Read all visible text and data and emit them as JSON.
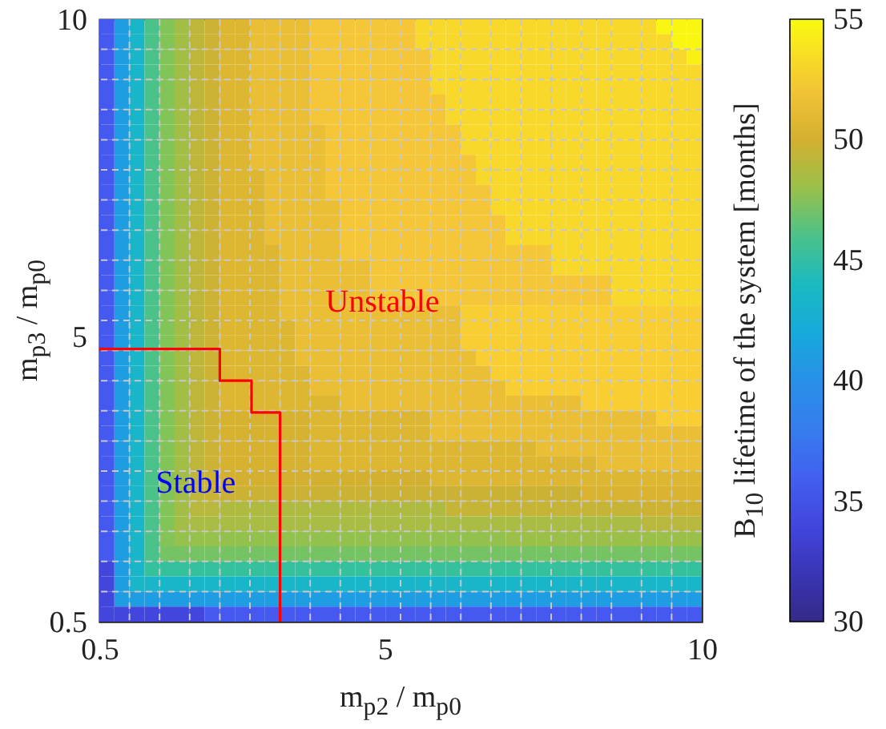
{
  "chart_data": {
    "type": "heatmap",
    "xlabel": "m$_{p2}$ / m$_{p0}$",
    "ylabel": "m$_{p3}$ / m$_{p0}$",
    "clabel": "B$_{10}$ lifetime of the system [months]",
    "xlim": [
      0.5,
      10
    ],
    "ylim": [
      0.5,
      10
    ],
    "xticks": [
      0.5,
      {
        "value": 0.975,
        "label": null
      },
      {
        "value": 1.45,
        "label": null
      },
      {
        "value": 1.925,
        "label": null
      },
      {
        "value": 2.4,
        "label": null
      },
      {
        "value": 2.875,
        "label": null
      },
      {
        "value": 3.35,
        "label": null
      },
      {
        "value": 3.825,
        "label": null
      },
      {
        "value": 4.3,
        "label": null
      },
      {
        "value": 4.775,
        "label": null
      },
      5,
      {
        "value": 5.25,
        "label": null
      },
      {
        "value": 5.725,
        "label": null
      },
      {
        "value": 6.2,
        "label": null
      },
      {
        "value": 6.675,
        "label": null
      },
      {
        "value": 7.15,
        "label": null
      },
      {
        "value": 7.625,
        "label": null
      },
      {
        "value": 8.1,
        "label": null
      },
      {
        "value": 8.575,
        "label": null
      },
      {
        "value": 9.05,
        "label": null
      },
      {
        "value": 9.525,
        "label": null
      },
      10
    ],
    "yticks": [
      0.5,
      {
        "value": 0.975,
        "label": null
      },
      {
        "value": 1.45,
        "label": null
      },
      {
        "value": 1.925,
        "label": null
      },
      {
        "value": 2.4,
        "label": null
      },
      {
        "value": 2.875,
        "label": null
      },
      {
        "value": 3.35,
        "label": null
      },
      {
        "value": 3.825,
        "label": null
      },
      {
        "value": 4.3,
        "label": null
      },
      {
        "value": 4.775,
        "label": null
      },
      5,
      {
        "value": 5.25,
        "label": null
      },
      {
        "value": 5.725,
        "label": null
      },
      {
        "value": 6.2,
        "label": null
      },
      {
        "value": 6.675,
        "label": null
      },
      {
        "value": 7.15,
        "label": null
      },
      {
        "value": 7.625,
        "label": null
      },
      {
        "value": 8.1,
        "label": null
      },
      {
        "value": 8.575,
        "label": null
      },
      {
        "value": 9.05,
        "label": null
      },
      {
        "value": 9.525,
        "label": null
      },
      10
    ],
    "grid": true,
    "clim": [
      30,
      55
    ],
    "cticks": [
      30,
      35,
      40,
      45,
      50,
      55
    ],
    "cells": [
      [
        35.5,
        41,
        43.5,
        46,
        47.3,
        48.3,
        49.2,
        49.8,
        50.7,
        50.7,
        51.5,
        51.5,
        51.5,
        51.5,
        52.3,
        52.3,
        52.3,
        52.3,
        52.3,
        52.3,
        52.3,
        53.3,
        53.3,
        53.3,
        53.3,
        53.3,
        53.3,
        53.3,
        53.3,
        53.3,
        53.3,
        53.3,
        53.3,
        53.3,
        53.3,
        53.3,
        53.3,
        54.8,
        54.8,
        54.8
      ],
      [
        35.5,
        41,
        43.5,
        46,
        47.3,
        48.3,
        49.2,
        49.8,
        50.7,
        50.7,
        51.5,
        51.5,
        51.5,
        51.5,
        52.3,
        52.3,
        52.3,
        52.3,
        52.3,
        52.3,
        52.3,
        53.3,
        53.3,
        53.3,
        53.3,
        53.3,
        53.3,
        53.3,
        53.3,
        53.3,
        53.3,
        53.3,
        53.3,
        53.3,
        53.3,
        53.3,
        53.3,
        53.3,
        54.8,
        54.8
      ],
      [
        35.5,
        41,
        43.5,
        46,
        47.3,
        48.3,
        49.2,
        49.8,
        50.7,
        50.7,
        51.5,
        51.5,
        51.5,
        51.5,
        52.3,
        52.3,
        52.3,
        52.3,
        52.3,
        52.3,
        52.3,
        52.3,
        53.3,
        53.3,
        53.3,
        53.3,
        53.3,
        53.3,
        53.3,
        53.3,
        53.3,
        53.3,
        53.3,
        53.3,
        53.3,
        53.3,
        53.3,
        53.3,
        53.3,
        54.5
      ],
      [
        35.5,
        41,
        43.5,
        46,
        47.3,
        48.3,
        49.2,
        49.8,
        50.7,
        50.7,
        51.5,
        51.5,
        51.5,
        51.5,
        52.3,
        52.3,
        52.3,
        52.3,
        52.3,
        52.3,
        52.3,
        52.3,
        53.3,
        53.3,
        53.3,
        53.3,
        53.3,
        53.3,
        53.3,
        53.3,
        53.3,
        53.3,
        53.3,
        53.3,
        53.3,
        53.3,
        53.3,
        53.3,
        53.3,
        53.3
      ],
      [
        35.5,
        41,
        43.5,
        46,
        47.3,
        48.3,
        49.2,
        49.8,
        50.7,
        50.7,
        51.5,
        51.5,
        51.5,
        51.5,
        52.3,
        52.3,
        52.3,
        52.3,
        52.3,
        52.3,
        52.3,
        52.3,
        53.3,
        53.3,
        53.3,
        53.3,
        53.3,
        53.3,
        53.3,
        53.3,
        53.3,
        53.3,
        53.3,
        53.3,
        53.3,
        53.3,
        53.3,
        53.3,
        53.3,
        53.3
      ],
      [
        35.5,
        41,
        43.5,
        46,
        47.3,
        48.3,
        49.2,
        49.8,
        50.7,
        50.7,
        51.5,
        51.5,
        51.5,
        51.5,
        52.3,
        52.3,
        52.3,
        52.3,
        52.3,
        52.3,
        52.3,
        52.3,
        52.3,
        53.3,
        53.3,
        53.3,
        53.3,
        53.3,
        53.3,
        53.3,
        53.3,
        53.3,
        53.3,
        53.3,
        53.3,
        53.3,
        53.3,
        53.3,
        53.3,
        53.3
      ],
      [
        35.5,
        41,
        43.5,
        46,
        47.3,
        48.3,
        49.2,
        49.8,
        50.7,
        50.7,
        51.5,
        51.5,
        51.5,
        51.5,
        52.3,
        52.3,
        52.3,
        52.3,
        52.3,
        52.3,
        52.3,
        52.3,
        52.3,
        53.3,
        53.3,
        53.3,
        53.3,
        53.3,
        53.3,
        53.3,
        53.3,
        53.3,
        53.3,
        53.3,
        53.3,
        53.3,
        53.3,
        53.3,
        53.3,
        53.3
      ],
      [
        35.5,
        41,
        43.5,
        46,
        47.3,
        48.3,
        49.2,
        49.8,
        50.7,
        50.7,
        51.5,
        51.5,
        51.5,
        51.5,
        51.5,
        52.3,
        52.3,
        52.3,
        52.3,
        52.3,
        52.3,
        52.3,
        52.3,
        52.3,
        53.3,
        53.3,
        53.3,
        53.3,
        53.3,
        53.3,
        53.3,
        53.3,
        53.3,
        53.3,
        53.3,
        53.3,
        53.3,
        53.3,
        53.3,
        53.3
      ],
      [
        35.5,
        41,
        43.5,
        46,
        47.3,
        48.3,
        49.2,
        49.8,
        50.7,
        50.7,
        51.5,
        51.5,
        51.5,
        51.5,
        51.5,
        52.3,
        52.3,
        52.3,
        52.3,
        52.3,
        52.3,
        52.3,
        52.3,
        52.3,
        53.3,
        53.3,
        53.3,
        53.3,
        53.3,
        53.3,
        53.3,
        53.3,
        53.3,
        53.3,
        53.3,
        53.3,
        53.3,
        53.3,
        53.3,
        53.3
      ],
      [
        35.5,
        41,
        43.5,
        46,
        47.3,
        48.3,
        49.2,
        49.8,
        50.7,
        50.7,
        51.5,
        51.5,
        51.5,
        51.5,
        51.5,
        52.3,
        52.3,
        52.3,
        52.3,
        52.3,
        52.3,
        52.3,
        52.3,
        52.3,
        52.3,
        53.3,
        53.3,
        53.3,
        53.3,
        53.3,
        53.3,
        53.3,
        53.3,
        53.3,
        53.3,
        53.3,
        53.3,
        53.3,
        53.3,
        53.3
      ],
      [
        35.5,
        41,
        43.5,
        46,
        47.3,
        48.3,
        49.2,
        49.8,
        50.7,
        50.7,
        50.7,
        51.5,
        51.5,
        51.5,
        51.5,
        52.3,
        52.3,
        52.3,
        52.3,
        52.3,
        52.3,
        52.3,
        52.3,
        52.3,
        52.3,
        53.3,
        53.3,
        53.3,
        53.3,
        53.3,
        53.3,
        53.3,
        53.3,
        53.3,
        53.3,
        53.3,
        53.3,
        53.3,
        53.3,
        53.3
      ],
      [
        35.5,
        41,
        43.5,
        46,
        47.3,
        48.3,
        49.2,
        49.8,
        50.7,
        50.7,
        50.7,
        51.5,
        51.5,
        51.5,
        51.5,
        52.3,
        52.3,
        52.3,
        52.3,
        52.3,
        52.3,
        52.3,
        52.3,
        52.3,
        52.3,
        52.3,
        53.3,
        53.3,
        53.3,
        53.3,
        53.3,
        53.3,
        53.3,
        53.3,
        53.3,
        53.3,
        53.3,
        53.3,
        53.3,
        53.3
      ],
      [
        35.5,
        41,
        43.5,
        46,
        47.3,
        48.3,
        49.2,
        49.8,
        50.7,
        50.7,
        50.7,
        51.5,
        51.5,
        51.5,
        51.5,
        51.5,
        52.3,
        52.3,
        52.3,
        52.3,
        52.3,
        52.3,
        52.3,
        52.3,
        52.3,
        52.3,
        53.3,
        53.3,
        53.3,
        53.3,
        53.3,
        53.3,
        53.3,
        53.3,
        53.3,
        53.3,
        53.3,
        53.3,
        53.3,
        53.3
      ],
      [
        35.5,
        41,
        43.5,
        46,
        47.3,
        48.3,
        49.2,
        49.8,
        50.7,
        50.7,
        50.7,
        51.5,
        51.5,
        51.5,
        51.5,
        51.5,
        52.3,
        52.3,
        52.3,
        52.3,
        52.3,
        52.3,
        52.3,
        52.3,
        52.3,
        52.3,
        52.3,
        53.3,
        53.3,
        53.3,
        53.3,
        53.3,
        53.3,
        53.3,
        53.3,
        53.3,
        53.3,
        53.3,
        53.3,
        53.3
      ],
      [
        35.5,
        41,
        43.5,
        46,
        47.3,
        48.3,
        49.2,
        49.8,
        50.7,
        50.7,
        50.7,
        51.5,
        51.5,
        51.5,
        51.5,
        51.5,
        52.3,
        52.3,
        52.3,
        52.3,
        52.3,
        52.3,
        52.3,
        52.3,
        52.3,
        52.3,
        52.3,
        53.3,
        53.3,
        53.3,
        53.3,
        53.3,
        53.3,
        53.3,
        53.3,
        53.3,
        53.3,
        53.3,
        53.3,
        53.3
      ],
      [
        35.5,
        41,
        43.5,
        46,
        47.3,
        48.3,
        49.2,
        49.8,
        50.7,
        50.7,
        50.7,
        50.7,
        51.5,
        51.5,
        51.5,
        51.5,
        52.3,
        52.3,
        52.3,
        52.3,
        52.3,
        52.3,
        52.3,
        52.3,
        52.3,
        52.3,
        52.3,
        52.3,
        52.3,
        52.3,
        53.3,
        53.3,
        53.3,
        53.3,
        53.3,
        53.3,
        53.3,
        53.3,
        53.3,
        53.3
      ],
      [
        35.5,
        41,
        43.5,
        46,
        47.3,
        48.3,
        49.2,
        49.8,
        50.7,
        50.7,
        50.7,
        50.7,
        51.5,
        51.5,
        51.5,
        51.5,
        51.5,
        51.5,
        52.3,
        52.3,
        52.3,
        52.3,
        52.3,
        52.3,
        52.3,
        52.3,
        52.3,
        52.3,
        52.3,
        52.3,
        53.3,
        53.3,
        53.3,
        53.3,
        53.3,
        53.3,
        53.3,
        53.3,
        53.3,
        53.3
      ],
      [
        35.5,
        41,
        43.5,
        46,
        47.3,
        48.3,
        49.2,
        49.8,
        50.7,
        50.7,
        50.7,
        50.7,
        51.5,
        51.5,
        51.5,
        51.5,
        51.5,
        51.5,
        52.3,
        52.3,
        52.3,
        52.3,
        52.3,
        52.3,
        52.3,
        52.3,
        52.3,
        52.3,
        52.3,
        52.3,
        52.3,
        52.3,
        52.3,
        52.3,
        53.3,
        53.3,
        53.3,
        53.3,
        53.3,
        53.3
      ],
      [
        35.5,
        41,
        43.5,
        46,
        47.3,
        48.3,
        49.2,
        49.8,
        50.7,
        50.7,
        50.7,
        50.7,
        51.5,
        51.5,
        51.5,
        51.5,
        51.5,
        51.5,
        52.3,
        52.3,
        52.3,
        52.3,
        52.3,
        52.3,
        52.3,
        52.3,
        52.3,
        52.3,
        52.3,
        52.3,
        52.3,
        52.3,
        52.3,
        52.3,
        53.3,
        53.3,
        53.3,
        53.3,
        53.3,
        53.3
      ],
      [
        35.5,
        41,
        43.5,
        46,
        47.3,
        48.3,
        49.2,
        49.8,
        50.7,
        50.7,
        50.7,
        50.7,
        51.5,
        51.5,
        51.5,
        51.5,
        51.5,
        51.5,
        51.5,
        51.5,
        51.5,
        51.5,
        51.5,
        51.5,
        52.8,
        52.8,
        52.8,
        52.8,
        52.8,
        52.8,
        52.8,
        52.8,
        52.8,
        52.8,
        52.8,
        52.8,
        52.8,
        52.8,
        52.8,
        52.8
      ],
      [
        35.5,
        41,
        43.5,
        46,
        47.3,
        48.3,
        49.2,
        49.8,
        50.7,
        50.7,
        50.7,
        50.7,
        50.7,
        51.5,
        51.5,
        51.5,
        51.5,
        51.5,
        51.5,
        51.5,
        51.5,
        51.5,
        51.5,
        51.5,
        52.8,
        52.8,
        52.8,
        52.8,
        52.8,
        52.8,
        52.8,
        52.8,
        52.8,
        52.8,
        52.8,
        52.8,
        52.8,
        52.8,
        52.8,
        52.8
      ],
      [
        35.5,
        41,
        43.5,
        46,
        47.3,
        48.3,
        49.2,
        49.8,
        50.7,
        50.7,
        50.7,
        50.7,
        50.7,
        51.5,
        51.5,
        51.5,
        51.5,
        51.5,
        51.5,
        51.5,
        51.5,
        51.5,
        51.5,
        51.5,
        52.8,
        52.8,
        52.8,
        52.8,
        52.8,
        52.8,
        52.8,
        52.8,
        52.8,
        52.8,
        52.8,
        52.8,
        52.8,
        52.8,
        52.8,
        52.8
      ],
      [
        35.5,
        41,
        43.5,
        46,
        47.3,
        48.3,
        49.2,
        49.8,
        50.7,
        50.7,
        50.7,
        50.7,
        50.7,
        51.5,
        51.5,
        51.5,
        51.5,
        51.5,
        51.5,
        51.5,
        51.5,
        51.5,
        51.5,
        51.5,
        51.5,
        52.8,
        52.8,
        52.8,
        52.8,
        52.8,
        52.8,
        52.8,
        52.8,
        52.8,
        52.8,
        52.8,
        52.8,
        52.8,
        52.8,
        52.8
      ],
      [
        35.5,
        41,
        43.5,
        46,
        47.3,
        48.3,
        49.2,
        49.8,
        50.7,
        50.7,
        50.7,
        50.7,
        50.7,
        50.7,
        51.5,
        51.5,
        51.5,
        51.5,
        51.5,
        51.5,
        51.5,
        51.5,
        51.5,
        51.5,
        51.5,
        51.5,
        52.8,
        52.8,
        52.8,
        52.8,
        52.8,
        52.8,
        52.8,
        52.8,
        52.8,
        52.8,
        52.8,
        52.8,
        52.8,
        52.8
      ],
      [
        35.5,
        41,
        43.5,
        46,
        47.3,
        48.3,
        49.2,
        49.8,
        50.7,
        50.7,
        50.7,
        50.7,
        50.7,
        50.7,
        51.5,
        51.5,
        51.5,
        51.5,
        51.5,
        51.5,
        51.5,
        51.5,
        51.5,
        51.5,
        51.5,
        51.5,
        51.5,
        52.8,
        52.8,
        52.8,
        52.8,
        52.8,
        52.8,
        52.8,
        52.8,
        52.8,
        52.8,
        52.8,
        52.8,
        52.8
      ],
      [
        35.5,
        41,
        43.5,
        46,
        47.3,
        48.3,
        49.2,
        49.8,
        50.7,
        50.7,
        50.7,
        50.7,
        50.7,
        50.7,
        50.7,
        50.7,
        51.5,
        51.5,
        51.5,
        51.5,
        51.5,
        51.5,
        51.5,
        51.5,
        51.5,
        51.5,
        51.5,
        51.5,
        51.5,
        51.5,
        51.5,
        51.5,
        52.8,
        52.8,
        52.8,
        52.8,
        52.8,
        52.8,
        52.8,
        52.8
      ],
      [
        35.5,
        41,
        43.5,
        46,
        47.3,
        48.3,
        49.2,
        49.8,
        50.2,
        50.2,
        50.2,
        50.2,
        50.2,
        50.2,
        50.7,
        50.7,
        50.7,
        50.7,
        50.7,
        50.7,
        50.7,
        50.7,
        51.5,
        51.5,
        51.5,
        51.5,
        51.5,
        51.5,
        51.5,
        51.5,
        51.5,
        51.5,
        51.5,
        51.5,
        51.5,
        51.5,
        51.5,
        52.8,
        52.8,
        52.8
      ],
      [
        35.5,
        41,
        43.5,
        46,
        47.3,
        48.3,
        49.2,
        49.8,
        50.2,
        50.2,
        50.2,
        50.2,
        50.2,
        50.2,
        50.7,
        50.7,
        50.7,
        50.7,
        50.7,
        50.7,
        50.7,
        50.7,
        51.5,
        51.5,
        51.5,
        51.5,
        51.5,
        51.5,
        51.5,
        51.5,
        51.5,
        51.5,
        51.5,
        51.5,
        51.5,
        51.5,
        51.5,
        51.5,
        51.5,
        51.5
      ],
      [
        35.5,
        41,
        43.5,
        46,
        47.3,
        48.3,
        49.2,
        49.8,
        50.2,
        50.2,
        50.2,
        50.2,
        50.2,
        50.2,
        50.7,
        50.7,
        50.7,
        50.7,
        50.7,
        50.7,
        50.7,
        50.7,
        50.7,
        50.7,
        50.7,
        50.7,
        50.7,
        50.7,
        50.7,
        51.5,
        51.5,
        51.5,
        51.5,
        51.5,
        51.5,
        51.5,
        51.5,
        51.5,
        51.5,
        51.5
      ],
      [
        35.5,
        41,
        43.5,
        46,
        47.3,
        48.3,
        49.2,
        49.8,
        50.2,
        50.2,
        50.2,
        50.2,
        50.2,
        50.2,
        50.7,
        50.7,
        50.7,
        50.7,
        50.7,
        50.7,
        50.7,
        50.7,
        50.7,
        50.7,
        50.7,
        50.7,
        50.7,
        50.7,
        50.7,
        50.7,
        50.7,
        50.7,
        50.7,
        51.5,
        51.5,
        51.5,
        51.5,
        51.5,
        51.5,
        51.5
      ],
      [
        35.5,
        41,
        43.5,
        46,
        47.3,
        48.3,
        49.2,
        49.8,
        50,
        50,
        50,
        50,
        50,
        50,
        50,
        50,
        50,
        50,
        50,
        50,
        50,
        50,
        50.7,
        50.7,
        50.7,
        50.7,
        50.7,
        50.7,
        50.7,
        50.7,
        50.7,
        50.7,
        50.7,
        50.7,
        50.7,
        50.7,
        50.7,
        50.7,
        50.7,
        50.7
      ],
      [
        35.5,
        41,
        43.5,
        46,
        47.3,
        48.3,
        49.2,
        49.6,
        49.7,
        49.7,
        49.7,
        49.7,
        49.7,
        49.7,
        49.7,
        49.7,
        49.7,
        49.7,
        49.7,
        49.7,
        49.7,
        49.7,
        49.7,
        49.7,
        49.7,
        49.7,
        49.7,
        49.7,
        49.7,
        49.7,
        49.7,
        49.7,
        50.4,
        50.4,
        50.4,
        50.4,
        50.4,
        50.4,
        50.4,
        50.4
      ],
      [
        35.5,
        41,
        43.5,
        46,
        47.3,
        48.3,
        49,
        49,
        48.7,
        48.7,
        48.7,
        48.7,
        48.7,
        48.7,
        48.7,
        48.7,
        48.7,
        48.7,
        48.7,
        48.7,
        48.7,
        48.7,
        48.7,
        49.5,
        49.5,
        49.5,
        49.5,
        49.5,
        49.5,
        49.5,
        49.5,
        49.5,
        49.5,
        49.5,
        49.5,
        49.5,
        49.8,
        49.8,
        49.8,
        49.8
      ],
      [
        35.5,
        41,
        43.5,
        46,
        47.3,
        48.3,
        48.5,
        48.5,
        48.5,
        48.5,
        48.5,
        48.5,
        48.5,
        48.5,
        48.5,
        48.5,
        48.5,
        48.5,
        48.5,
        48.5,
        48.5,
        48.5,
        48.5,
        48.5,
        48.5,
        48.5,
        48.5,
        48.5,
        48.5,
        48.5,
        48.5,
        48.5,
        48.5,
        48.5,
        48.5,
        48.5,
        49,
        49,
        49,
        49
      ],
      [
        35.5,
        41,
        43.5,
        46,
        47.3,
        47.8,
        47.8,
        47.8,
        47.7,
        47.7,
        47.7,
        47.7,
        47.7,
        47.7,
        47.7,
        47.7,
        47.7,
        47.7,
        47.7,
        47.7,
        47.7,
        47.7,
        47.7,
        47.7,
        47.7,
        47.7,
        47.7,
        48,
        48,
        48,
        48,
        48,
        48,
        48,
        48,
        48,
        48,
        48,
        48,
        48
      ],
      [
        35.5,
        41,
        43.5,
        46,
        47,
        47,
        47,
        47,
        47,
        47,
        47,
        47,
        47,
        47,
        47,
        47,
        47,
        47,
        47,
        47,
        47,
        47,
        47,
        47,
        47,
        47,
        47,
        47,
        47,
        47,
        47,
        47,
        47,
        47,
        47,
        47,
        47,
        47,
        47,
        47
      ],
      [
        34,
        41,
        43.5,
        45.5,
        45.5,
        45.5,
        45.5,
        45.5,
        45.5,
        45.5,
        45.5,
        45.5,
        45.5,
        45.5,
        45.5,
        45.5,
        45.5,
        45.5,
        45.5,
        45.5,
        45.5,
        45.5,
        45.5,
        45.5,
        45.5,
        45.5,
        45.5,
        45.5,
        45.5,
        45.5,
        45.5,
        45.5,
        45.5,
        45.5,
        45.5,
        45.5,
        45.5,
        45.5,
        45.5,
        45.5
      ],
      [
        34,
        41,
        43.5,
        43.5,
        43.5,
        43.5,
        43.5,
        43.5,
        43.5,
        43.5,
        43.5,
        43.5,
        43.5,
        43.5,
        43.5,
        43.5,
        43.5,
        43.5,
        43.5,
        43.5,
        43.5,
        43.5,
        43.5,
        43.5,
        43.5,
        43.5,
        43.5,
        43.5,
        43.5,
        43.5,
        43.5,
        43.5,
        43.5,
        43.5,
        43.5,
        43.5,
        43.5,
        43.5,
        43.5,
        43.5
      ],
      [
        34,
        41,
        41,
        41,
        41,
        41,
        41,
        41,
        41,
        41,
        41,
        41,
        41,
        41,
        41,
        41,
        41,
        41,
        41,
        41,
        41,
        41,
        41,
        41,
        41,
        41,
        41,
        41,
        41,
        41,
        41,
        41,
        41,
        41,
        41,
        41,
        41,
        41,
        41,
        41
      ],
      [
        34,
        34,
        34,
        34,
        34,
        34,
        34,
        35.5,
        35.5,
        35.5,
        35.5,
        35.5,
        35.5,
        35.5,
        35.5,
        35.5,
        35.5,
        35.5,
        35.5,
        35.5,
        35.5,
        35.5,
        35.5,
        35.5,
        35.5,
        35.5,
        35.5,
        35.5,
        35.5,
        35.5,
        35.5,
        35.5,
        35.5,
        35.5,
        35.5,
        35.5,
        35.5,
        35.5,
        35.5,
        35.5
      ]
    ],
    "series": [
      {
        "type": "line",
        "color": "#ff0000",
        "x": [
          0.5,
          2.4,
          2.4,
          2.9,
          2.9,
          3.35,
          3.35
        ],
        "values": [
          4.8,
          4.8,
          4.3,
          4.3,
          3.8,
          3.8,
          0.5
        ]
      }
    ],
    "annotations": [
      "Stable",
      "Unstable"
    ]
  }
}
